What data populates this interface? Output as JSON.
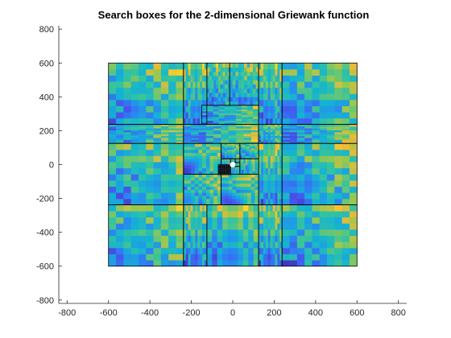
{
  "chart_data": {
    "type": "heatmap",
    "title": "Search boxes for the 2-dimensional Griewank function",
    "xlabel": "",
    "ylabel": "",
    "xlim": [
      -840,
      840
    ],
    "ylim": [
      -820,
      820
    ],
    "x_ticks": [
      -800,
      -600,
      -400,
      -200,
      0,
      200,
      400,
      600,
      800
    ],
    "y_ticks": [
      -800,
      -600,
      -400,
      -200,
      0,
      200,
      400,
      600,
      800
    ],
    "grid": false,
    "colormap": "parula",
    "colors": {
      "box_edge": "#000000",
      "best_point": "#ffffff",
      "axis": "#262626"
    },
    "boxes": [
      {
        "x0": -600,
        "x1": -238,
        "y0": 238,
        "y1": 600
      },
      {
        "x0": -238,
        "x1": -125,
        "y0": 238,
        "y1": 600
      },
      {
        "x0": -125,
        "x1": -15,
        "y0": 350,
        "y1": 600
      },
      {
        "x0": -15,
        "x1": 125,
        "y0": 350,
        "y1": 600
      },
      {
        "x0": -150,
        "x1": 125,
        "y0": 238,
        "y1": 350
      },
      {
        "x0": 125,
        "x1": 238,
        "y0": 238,
        "y1": 600
      },
      {
        "x0": 238,
        "x1": 600,
        "y0": 238,
        "y1": 600
      },
      {
        "x0": -600,
        "x1": -238,
        "y0": 125,
        "y1": 238
      },
      {
        "x0": 238,
        "x1": 600,
        "y0": 125,
        "y1": 238
      },
      {
        "x0": -600,
        "x1": -238,
        "y0": -238,
        "y1": 125
      },
      {
        "x0": 238,
        "x1": 600,
        "y0": -238,
        "y1": 125
      },
      {
        "x0": -600,
        "x1": -238,
        "y0": -600,
        "y1": -238
      },
      {
        "x0": -238,
        "x1": -125,
        "y0": -600,
        "y1": -238
      },
      {
        "x0": -125,
        "x1": 125,
        "y0": -600,
        "y1": -238
      },
      {
        "x0": 125,
        "x1": 238,
        "y0": -600,
        "y1": -238
      },
      {
        "x0": 238,
        "x1": 600,
        "y0": -600,
        "y1": -238
      }
    ],
    "best_point": {
      "x": 0,
      "y": 0
    }
  }
}
